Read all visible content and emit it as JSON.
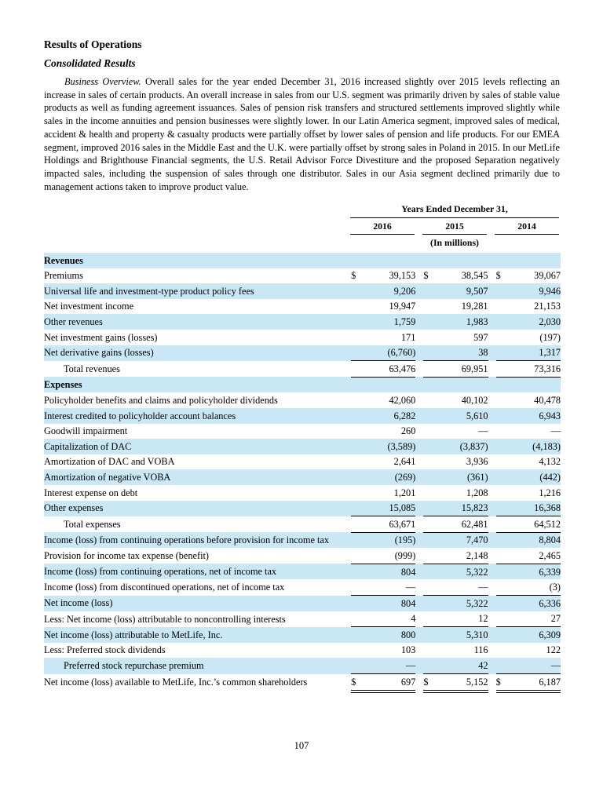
{
  "page": {
    "heading1": "Results of Operations",
    "heading2": "Consolidated Results",
    "paragraph_lead": "Business Overview.",
    "paragraph_body": " Overall sales for the year ended December 31, 2016 increased slightly over 2015 levels reflecting an increase in sales of certain products. An overall increase in sales from our U.S. segment was primarily driven by sales of stable value products as well as funding agreement issuances. Sales of pension risk transfers and structured settlements improved slightly while sales in the income annuities and pension businesses were slightly lower. In our Latin America segment, improved sales of medical, accident & health and property & casualty products were partially offset by lower sales of pension and life products. For our EMEA segment, improved 2016 sales in the Middle East and the U.K. were partially offset by strong sales in Poland in 2015. In our MetLife Holdings and Brighthouse Financial segments, the U.S. Retail Advisor Force Divestiture and the proposed Separation negatively impacted sales, including the suspension of sales through one distributor. Sales in our Asia segment declined primarily due to management actions taken to improve product value.",
    "page_number": "107"
  },
  "colors": {
    "band_blue": "#c9e7f4",
    "text": "#000000",
    "rule": "#000000"
  },
  "table": {
    "header": {
      "title": "Years Ended December 31,",
      "years": [
        "2016",
        "2015",
        "2014"
      ],
      "units": "(In millions)"
    },
    "rows": [
      {
        "label": "Revenues",
        "section": true,
        "shade": true
      },
      {
        "label": "Premiums",
        "dollar": true,
        "values": [
          "39,153",
          "38,545",
          "39,067"
        ],
        "shade": false
      },
      {
        "label": "Universal life and investment-type product policy fees",
        "values": [
          "9,206",
          "9,507",
          "9,946"
        ],
        "shade": true
      },
      {
        "label": "Net investment income",
        "values": [
          "19,947",
          "19,281",
          "21,153"
        ],
        "shade": false
      },
      {
        "label": "Other revenues",
        "values": [
          "1,759",
          "1,983",
          "2,030"
        ],
        "shade": true
      },
      {
        "label": "Net investment gains (losses)",
        "values": [
          "171",
          "597",
          "(197)"
        ],
        "shade": false
      },
      {
        "label": "Net derivative gains (losses)",
        "values": [
          "(6,760)",
          "38",
          "1,317"
        ],
        "shade": true,
        "rule": true
      },
      {
        "label": "Total revenues",
        "indent": true,
        "values": [
          "63,476",
          "69,951",
          "73,316"
        ],
        "shade": false,
        "rule": true
      },
      {
        "label": "Expenses",
        "section": true,
        "shade": true
      },
      {
        "label": "Policyholder benefits and claims and policyholder dividends",
        "values": [
          "42,060",
          "40,102",
          "40,478"
        ],
        "shade": false
      },
      {
        "label": "Interest credited to policyholder account balances",
        "values": [
          "6,282",
          "5,610",
          "6,943"
        ],
        "shade": true
      },
      {
        "label": "Goodwill impairment",
        "values": [
          "260",
          "—",
          "—"
        ],
        "shade": false
      },
      {
        "label": "Capitalization of DAC",
        "values": [
          "(3,589)",
          "(3,837)",
          "(4,183)"
        ],
        "shade": true
      },
      {
        "label": "Amortization of DAC and VOBA",
        "values": [
          "2,641",
          "3,936",
          "4,132"
        ],
        "shade": false
      },
      {
        "label": "Amortization of negative VOBA",
        "values": [
          "(269)",
          "(361)",
          "(442)"
        ],
        "shade": true
      },
      {
        "label": "Interest expense on debt",
        "values": [
          "1,201",
          "1,208",
          "1,216"
        ],
        "shade": false
      },
      {
        "label": "Other expenses",
        "values": [
          "15,085",
          "15,823",
          "16,368"
        ],
        "shade": true,
        "rule": true
      },
      {
        "label": "Total expenses",
        "indent": true,
        "values": [
          "63,671",
          "62,481",
          "64,512"
        ],
        "shade": false,
        "rule": true
      },
      {
        "label": "Income (loss) from continuing operations before provision for income tax",
        "values": [
          "(195)",
          "7,470",
          "8,804"
        ],
        "shade": true
      },
      {
        "label": "Provision for income tax expense (benefit)",
        "values": [
          "(999)",
          "2,148",
          "2,465"
        ],
        "shade": false,
        "rule": true
      },
      {
        "label": "Income (loss) from continuing operations, net of income tax",
        "values": [
          "804",
          "5,322",
          "6,339"
        ],
        "shade": true
      },
      {
        "label": "Income (loss) from discontinued operations, net of income tax",
        "values": [
          "—",
          "—",
          "(3)"
        ],
        "shade": false,
        "rule": true
      },
      {
        "label": "Net income (loss)",
        "values": [
          "804",
          "5,322",
          "6,336"
        ],
        "shade": true
      },
      {
        "label": "Less: Net income (loss) attributable to noncontrolling interests",
        "values": [
          "4",
          "12",
          "27"
        ],
        "shade": false,
        "rule": true
      },
      {
        "label": "Net income (loss) attributable to MetLife, Inc.",
        "values": [
          "800",
          "5,310",
          "6,309"
        ],
        "shade": true
      },
      {
        "label": "Less: Preferred stock dividends",
        "values": [
          "103",
          "116",
          "122"
        ],
        "shade": false
      },
      {
        "label": "Preferred stock repurchase premium",
        "indent": true,
        "values": [
          "—",
          "42",
          "—"
        ],
        "shade": true,
        "rule": true
      },
      {
        "label": "Net income (loss) available to MetLife, Inc.’s common shareholders",
        "dollar": true,
        "values": [
          "697",
          "5,152",
          "6,187"
        ],
        "shade": false,
        "double_rule": true
      }
    ]
  }
}
